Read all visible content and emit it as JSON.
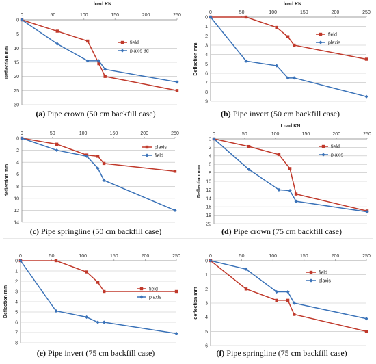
{
  "colors": {
    "field": "#c0392b",
    "plaxis": "#3a72b8",
    "grid": "#bfbfbf"
  },
  "chart_data": [
    {
      "type": "line",
      "panel_letter": "(a)",
      "caption": " Pipe crown (50 cm backfill case)",
      "xlabel": "load KN",
      "ylabel": "Deflection mm",
      "xlim": [
        0,
        250
      ],
      "xticks": [
        0,
        50,
        100,
        150,
        200,
        250
      ],
      "ylim": [
        0,
        30
      ],
      "yticks": [
        0,
        5,
        10,
        15,
        20,
        25,
        30
      ],
      "y_inverted": true,
      "x_axis_position": "top",
      "grid": "horizontal",
      "legend": "right",
      "series": [
        {
          "name": "field",
          "color": "#c0392b",
          "marker": "square",
          "x": [
            0,
            57,
            106,
            124,
            134,
            250
          ],
          "y": [
            0,
            4,
            7.5,
            15.5,
            20,
            25
          ]
        },
        {
          "name": "plaxis 3d",
          "color": "#3a72b8",
          "marker": "diamond",
          "x": [
            0,
            57,
            106,
            124,
            134,
            250
          ],
          "y": [
            0,
            8.5,
            14.5,
            14.5,
            17.5,
            22
          ]
        }
      ]
    },
    {
      "type": "line",
      "panel_letter": "(b)",
      "caption": " Pipe invert (50 cm backfill case)",
      "xlabel": "load KN",
      "ylabel": "Deflection mm",
      "xlim": [
        0,
        250
      ],
      "xticks": [
        0,
        50,
        100,
        150,
        200,
        250
      ],
      "ylim": [
        0,
        9
      ],
      "yticks": [
        0,
        1,
        2,
        3,
        4,
        5,
        6,
        7,
        8,
        9
      ],
      "y_inverted": true,
      "x_axis_position": "top",
      "grid": "horizontal",
      "legend": "right",
      "series": [
        {
          "name": "field",
          "color": "#c0392b",
          "marker": "square",
          "x": [
            0,
            57,
            106,
            124,
            134,
            250
          ],
          "y": [
            0,
            0,
            1.1,
            2.1,
            3,
            4.5
          ]
        },
        {
          "name": "plaxis",
          "color": "#3a72b8",
          "marker": "diamond",
          "x": [
            0,
            57,
            106,
            124,
            134,
            250
          ],
          "y": [
            0,
            4.7,
            5.2,
            6.5,
            6.5,
            8.5
          ]
        }
      ]
    },
    {
      "type": "line",
      "panel_letter": "(c)",
      "caption": " Pipe springline (50 cm backfill case)",
      "xlabel": "",
      "ylabel": "deflection mm",
      "xlim": [
        0,
        250
      ],
      "xticks": [
        0,
        50,
        100,
        150,
        200,
        250
      ],
      "ylim": [
        0,
        14
      ],
      "yticks": [
        0,
        2,
        4,
        6,
        8,
        10,
        12,
        14
      ],
      "y_inverted": true,
      "x_axis_position": "top",
      "grid": "horizontal",
      "legend": "right",
      "series": [
        {
          "name": "plaxis",
          "color": "#c0392b",
          "marker": "square",
          "x": [
            0,
            57,
            106,
            124,
            134,
            250
          ],
          "y": [
            0,
            1,
            2.8,
            3,
            4.2,
            5.5
          ]
        },
        {
          "name": "field",
          "color": "#3a72b8",
          "marker": "diamond",
          "x": [
            0,
            57,
            106,
            124,
            134,
            250
          ],
          "y": [
            0,
            2,
            3,
            5,
            7,
            12
          ]
        }
      ]
    },
    {
      "type": "line",
      "panel_letter": "(d)",
      "caption": " Pipe crown (75 cm backfill case)",
      "xlabel": "Load KN",
      "ylabel": "Deflection mm",
      "xlim": [
        0,
        250
      ],
      "xticks": [
        0,
        50,
        100,
        150,
        200,
        250
      ],
      "ylim": [
        0,
        20
      ],
      "yticks": [
        0,
        2,
        4,
        6,
        8,
        10,
        12,
        14,
        16,
        18,
        20
      ],
      "y_inverted": true,
      "x_axis_position": "top",
      "grid": "horizontal",
      "legend": "right",
      "series": [
        {
          "name": "field",
          "color": "#c0392b",
          "marker": "square",
          "x": [
            0,
            57,
            106,
            124,
            134,
            250
          ],
          "y": [
            0,
            1.8,
            3.7,
            7,
            13,
            17
          ]
        },
        {
          "name": "plaxis",
          "color": "#3a72b8",
          "marker": "diamond",
          "x": [
            0,
            57,
            106,
            124,
            134,
            250
          ],
          "y": [
            0,
            7.2,
            12,
            12.2,
            14.7,
            17.2
          ]
        }
      ]
    },
    {
      "type": "line",
      "panel_letter": "(e)",
      "caption": " Pipe invert (75 cm backfill case)",
      "xlabel": "",
      "ylabel": "Deflection mm",
      "xlim": [
        0,
        250
      ],
      "xticks": [
        0,
        50,
        100,
        150,
        200,
        250
      ],
      "ylim": [
        0,
        8
      ],
      "yticks": [
        0,
        1,
        2,
        3,
        4,
        5,
        6,
        7,
        8
      ],
      "y_inverted": true,
      "x_axis_position": "top",
      "grid": "horizontal",
      "legend": "right",
      "series": [
        {
          "name": "field",
          "color": "#c0392b",
          "marker": "square",
          "x": [
            0,
            57,
            106,
            124,
            134,
            250
          ],
          "y": [
            0,
            0,
            1.1,
            2.1,
            3,
            3
          ]
        },
        {
          "name": "plaxis",
          "color": "#3a72b8",
          "marker": "diamond",
          "x": [
            0,
            57,
            106,
            124,
            134,
            250
          ],
          "y": [
            0,
            4.9,
            5.5,
            6,
            6,
            7.1
          ]
        }
      ]
    },
    {
      "type": "line",
      "panel_letter": "(f)",
      "caption": " Pipe springline (75 cm backfill case)",
      "xlabel": "",
      "ylabel": "deflection mm",
      "xlim": [
        0,
        250
      ],
      "xticks": [
        0,
        50,
        100,
        150,
        200,
        250
      ],
      "ylim": [
        0,
        6
      ],
      "yticks": [
        0,
        1,
        2,
        3,
        4,
        5,
        6
      ],
      "y_inverted": true,
      "x_axis_position": "top",
      "grid": "horizontal",
      "legend": "right",
      "series": [
        {
          "name": "field",
          "color": "#c0392b",
          "marker": "square",
          "x": [
            0,
            57,
            106,
            124,
            134,
            250
          ],
          "y": [
            0,
            2,
            2.8,
            2.8,
            3.8,
            5
          ]
        },
        {
          "name": "plaxis",
          "color": "#3a72b8",
          "marker": "diamond",
          "x": [
            0,
            57,
            106,
            124,
            134,
            250
          ],
          "y": [
            0,
            0.6,
            2.2,
            2.2,
            3,
            4.1
          ]
        }
      ]
    }
  ]
}
